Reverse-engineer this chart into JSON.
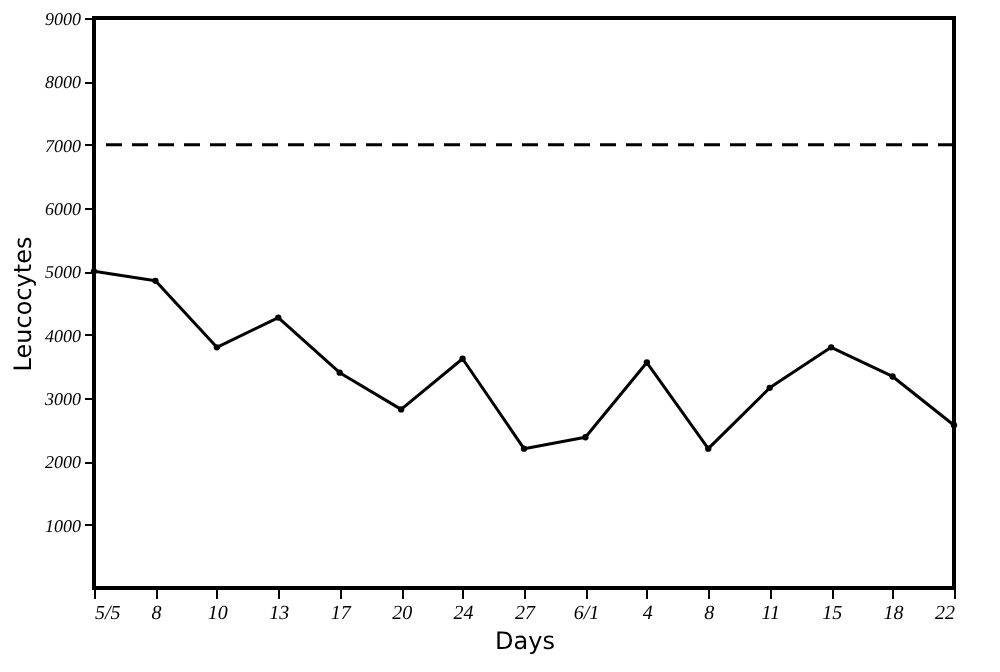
{
  "chart_data": {
    "type": "line",
    "xlabel": "Days",
    "ylabel": "Leucocytes",
    "categories": [
      "5/5",
      "8",
      "10",
      "13",
      "17",
      "20",
      "24",
      "27",
      "6/1",
      "4",
      "8",
      "11",
      "15",
      "18",
      "22"
    ],
    "values": [
      5000,
      4850,
      3800,
      4270,
      3400,
      2820,
      3620,
      2200,
      2380,
      3560,
      2200,
      3160,
      3800,
      3340,
      2570
    ],
    "color": "#000000",
    "ylim": [
      0,
      9000
    ],
    "yticks": [
      1000,
      2000,
      3000,
      4000,
      5000,
      6000,
      7000,
      8000,
      9000
    ],
    "ref_lines": [
      {
        "axis": "y",
        "value": 7000,
        "line_style": "dashed",
        "color": "#000000"
      }
    ],
    "grid": false,
    "marker": "circle",
    "line_style": "solid"
  }
}
